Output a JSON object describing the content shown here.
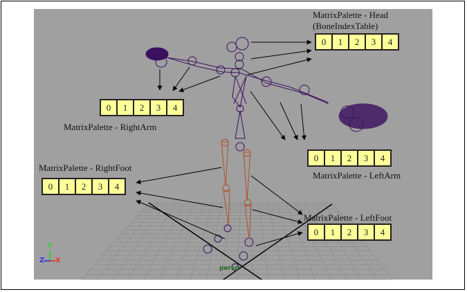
{
  "viewport": {
    "background": "#a0a0a0",
    "camera_label": "persp",
    "axis_labels": {
      "y": "Y",
      "z": "Z",
      "x": "X"
    }
  },
  "palettes": {
    "head": {
      "title": "MatrixPalette - Head",
      "subtitle": "(BoneIndexTable)",
      "cells": [
        "0",
        "1",
        "2",
        "3",
        "4"
      ]
    },
    "right_arm": {
      "title": "MatrixPalette - RightArm",
      "cells": [
        "0",
        "1",
        "2",
        "3",
        "4"
      ]
    },
    "left_arm": {
      "title": "MatrixPalette - LeftArm",
      "cells": [
        "0",
        "1",
        "2",
        "3",
        "4"
      ]
    },
    "right_foot": {
      "title": "MatrixPalette - RightFoot",
      "cells": [
        "0",
        "1",
        "2",
        "3",
        "4"
      ]
    },
    "left_foot": {
      "title": "MatrixPalette - LeftFoot",
      "cells": [
        "0",
        "1",
        "2",
        "3",
        "4"
      ]
    }
  },
  "colors": {
    "cell_fill": "#ffff99",
    "skeleton_upper": "#3a1060",
    "skeleton_legs": "#b0502a",
    "grid": "#888888"
  }
}
